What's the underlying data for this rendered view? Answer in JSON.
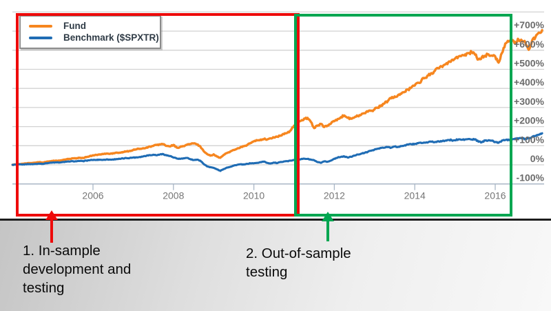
{
  "chart_data": {
    "type": "line",
    "title": "",
    "grid": true,
    "legend_position": "top-left",
    "x_axis": {
      "start_year": 2004.0,
      "end_year": 2017.17,
      "tick_years": [
        2006,
        2008,
        2010,
        2012,
        2014,
        2016
      ],
      "tick_labels": [
        "2006",
        "2008",
        "2010",
        "2012",
        "2014",
        "2016"
      ]
    },
    "y_axis": {
      "unit": "percent cumulative return",
      "min": -100,
      "max": 800,
      "tick_step": 100,
      "tick_values": [
        700,
        600,
        500,
        400,
        300,
        200,
        100,
        0,
        -100
      ],
      "tick_labels": [
        "+700%",
        "+600%",
        "+500%",
        "+400%",
        "+300%",
        "+200%",
        "+100%",
        "0%",
        "-100%"
      ]
    },
    "series": [
      {
        "name": "Fund",
        "color": "#F6861F",
        "points_per_year": 12,
        "values_pct": [
          0,
          2,
          4,
          5,
          7,
          9,
          10,
          12,
          14,
          12,
          15,
          18,
          20,
          22,
          21,
          25,
          28,
          31,
          34,
          33,
          37,
          36,
          40,
          45,
          50,
          52,
          54,
          56,
          59,
          57,
          61,
          64,
          63,
          67,
          70,
          73,
          78,
          81,
          84,
          87,
          91,
          96,
          99,
          104,
          107,
          108,
          99,
          96,
          104,
          90,
          93,
          98,
          105,
          109,
          112,
          107,
          97,
          72,
          57,
          48,
          55,
          43,
          37,
          52,
          62,
          70,
          78,
          85,
          92,
          97,
          104,
          114,
          123,
          128,
          132,
          135,
          133,
          139,
          143,
          147,
          153,
          160,
          168,
          180,
          205,
          218,
          230,
          242,
          246,
          225,
          192,
          204,
          214,
          198,
          206,
          216,
          228,
          240,
          250,
          258,
          246,
          241,
          248,
          255,
          262,
          270,
          278,
          284,
          290,
          300,
          312,
          322,
          335,
          348,
          358,
          365,
          372,
          382,
          395,
          405,
          415,
          430,
          442,
          455,
          468,
          480,
          492,
          505,
          515,
          525,
          538,
          548,
          556,
          566,
          572,
          578,
          585,
          590,
          576,
          552,
          563,
          571,
          578,
          572,
          568,
          535,
          585,
          635,
          645,
          650,
          643,
          655,
          650,
          640,
          602,
          650,
          668,
          692,
          705
        ]
      },
      {
        "name": "Benchmark ($SPXTR)",
        "color": "#1F6CB4",
        "points_per_year": 12,
        "values_pct": [
          0,
          1,
          2,
          1,
          3,
          4,
          3,
          5,
          6,
          5,
          8,
          10,
          12,
          13,
          12,
          14,
          16,
          17,
          19,
          18,
          20,
          19,
          22,
          24,
          25,
          26,
          27,
          26,
          28,
          27,
          28,
          30,
          31,
          33,
          35,
          36,
          38,
          39,
          41,
          44,
          48,
          51,
          53,
          50,
          54,
          56,
          49,
          46,
          38,
          33,
          31,
          34,
          36,
          30,
          25,
          27,
          22,
          5,
          -8,
          -12,
          -16,
          -24,
          -32,
          -22,
          -14,
          -10,
          -4,
          0,
          3,
          1,
          5,
          8,
          8,
          10,
          14,
          17,
          10,
          7,
          12,
          9,
          15,
          18,
          19,
          22,
          25,
          28,
          29,
          32,
          31,
          27,
          24,
          14,
          10,
          18,
          16,
          22,
          32,
          38,
          42,
          44,
          38,
          42,
          48,
          54,
          58,
          62,
          68,
          74,
          80,
          84,
          88,
          90,
          93,
          90,
          96,
          93,
          98,
          102,
          106,
          108,
          110,
          113,
          114,
          116,
          118,
          121,
          119,
          124,
          122,
          126,
          130,
          129,
          128,
          133,
          131,
          133,
          135,
          132,
          134,
          121,
          118,
          127,
          129,
          126,
          120,
          115,
          127,
          130,
          132,
          134,
          138,
          139,
          138,
          136,
          140,
          146,
          152,
          158,
          165
        ]
      }
    ],
    "annotations": [
      {
        "caption": "1. In-sample\ndevelopment and\ntesting",
        "box_color": "#EE0A0A",
        "x_range_years": [
          2004.1,
          2011.0
        ]
      },
      {
        "caption": "2. Out-of-sample\ntesting",
        "box_color": "#00A651",
        "x_range_years": [
          2011.0,
          2016.3
        ]
      }
    ]
  }
}
